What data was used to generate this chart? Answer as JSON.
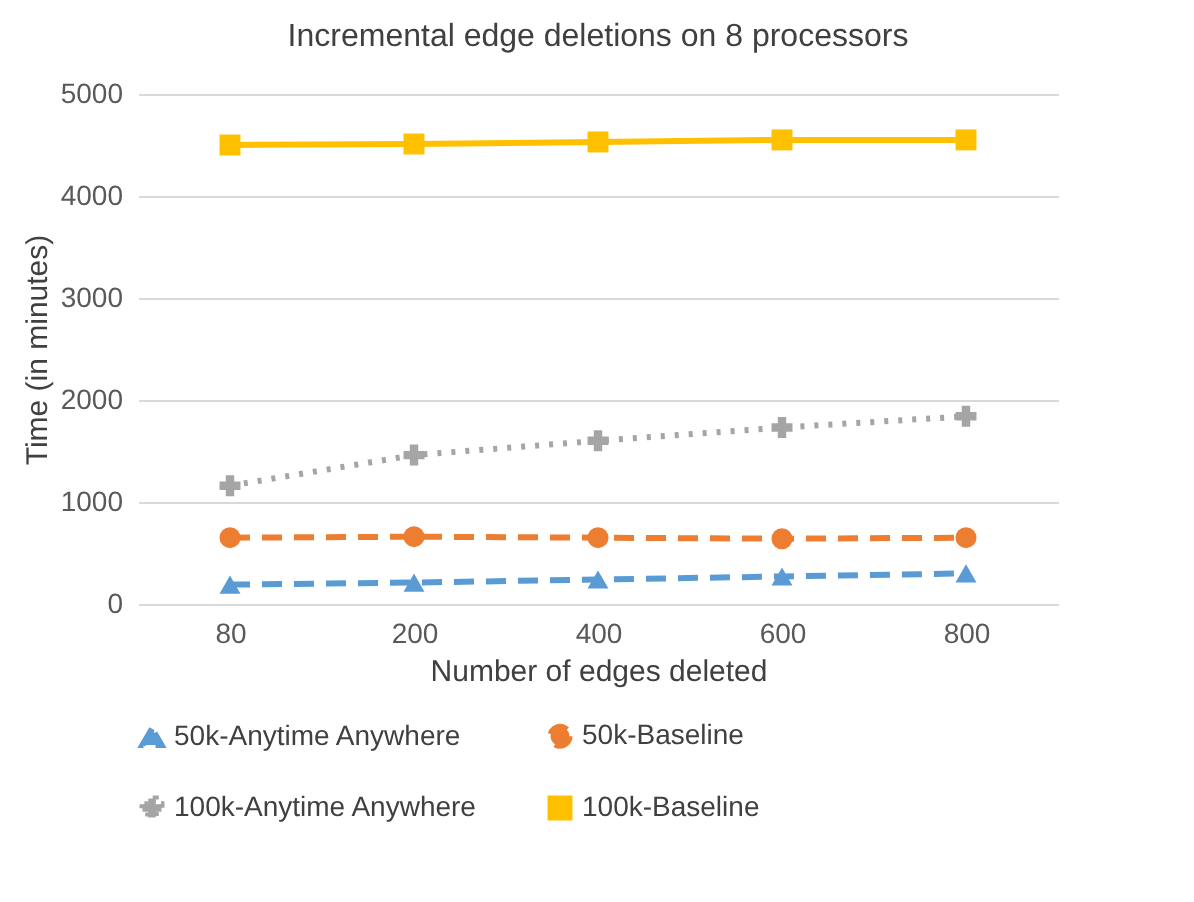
{
  "chart_data": {
    "type": "line",
    "title": "Incremental edge deletions on 8 processors",
    "xlabel": "Number of edges deleted",
    "ylabel": "Time (in minutes)",
    "categories": [
      "80",
      "200",
      "400",
      "600",
      "800"
    ],
    "series": [
      {
        "name": "50k-Anytime Anywhere",
        "color": "#5b9bd5",
        "marker": "triangle",
        "line_style": "dashed",
        "values": [
          190,
          210,
          240,
          270,
          300
        ]
      },
      {
        "name": "50k-Baseline",
        "color": "#ed7d31",
        "marker": "circle",
        "line_style": "dashed",
        "values": [
          650,
          660,
          650,
          640,
          650
        ]
      },
      {
        "name": "100k-Anytime Anywhere",
        "color": "#a5a5a5",
        "marker": "cross",
        "line_style": "dotted",
        "values": [
          1160,
          1460,
          1600,
          1730,
          1840
        ]
      },
      {
        "name": "100k-Baseline",
        "color": "#ffc000",
        "marker": "square",
        "line_style": "solid",
        "values": [
          4500,
          4510,
          4530,
          4550,
          4550
        ]
      }
    ],
    "ylim": [
      0,
      5000
    ],
    "yticks": [
      0,
      1000,
      2000,
      3000,
      4000,
      5000
    ],
    "grid": "y",
    "legend": "bottom"
  }
}
